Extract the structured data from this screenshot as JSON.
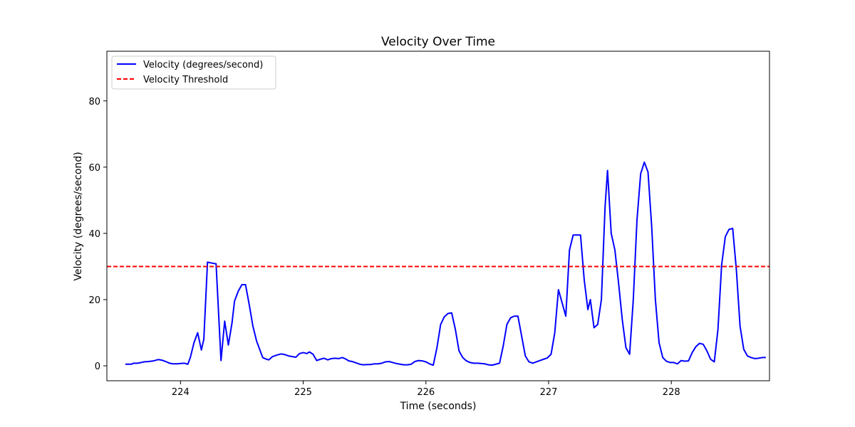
{
  "chart_data": {
    "type": "line",
    "title": "Velocity Over Time",
    "xlabel": "Time (seconds)",
    "ylabel": "Velocity (degrees/second)",
    "xlim": [
      223.4,
      228.8
    ],
    "ylim": [
      -4.5,
      95
    ],
    "x_ticks": [
      224,
      225,
      226,
      227,
      228
    ],
    "y_ticks": [
      0,
      20,
      40,
      60,
      80
    ],
    "grid": false,
    "legend_position": "top-left",
    "series": [
      {
        "name": "Velocity (degrees/second)",
        "color": "#0000ff",
        "style": "solid",
        "points": [
          [
            223.55,
            0.5
          ],
          [
            223.6,
            0.5
          ],
          [
            223.62,
            0.8
          ],
          [
            223.65,
            0.8
          ],
          [
            223.68,
            1.0
          ],
          [
            223.7,
            1.2
          ],
          [
            223.74,
            1.3
          ],
          [
            223.78,
            1.5
          ],
          [
            223.82,
            1.9
          ],
          [
            223.85,
            1.7
          ],
          [
            223.88,
            1.3
          ],
          [
            223.91,
            0.8
          ],
          [
            223.94,
            0.6
          ],
          [
            223.97,
            0.6
          ],
          [
            224.0,
            0.7
          ],
          [
            224.03,
            0.8
          ],
          [
            224.06,
            0.5
          ],
          [
            224.08,
            2.5
          ],
          [
            224.11,
            7.0
          ],
          [
            224.14,
            10.0
          ],
          [
            224.17,
            4.8
          ],
          [
            224.19,
            8.0
          ],
          [
            224.22,
            31.3
          ],
          [
            224.26,
            31.0
          ],
          [
            224.29,
            30.8
          ],
          [
            224.33,
            1.6
          ],
          [
            224.36,
            13.5
          ],
          [
            224.39,
            6.3
          ],
          [
            224.42,
            13.0
          ],
          [
            224.44,
            19.5
          ],
          [
            224.47,
            22.5
          ],
          [
            224.5,
            24.5
          ],
          [
            224.53,
            24.5
          ],
          [
            224.56,
            18.5
          ],
          [
            224.59,
            12.0
          ],
          [
            224.62,
            7.5
          ],
          [
            224.65,
            4.5
          ],
          [
            224.67,
            2.5
          ],
          [
            224.7,
            2.0
          ],
          [
            224.72,
            1.8
          ],
          [
            224.75,
            2.8
          ],
          [
            224.79,
            3.3
          ],
          [
            224.82,
            3.6
          ],
          [
            224.85,
            3.4
          ],
          [
            224.88,
            3.0
          ],
          [
            224.91,
            2.8
          ],
          [
            224.94,
            2.6
          ],
          [
            224.97,
            3.7
          ],
          [
            225.0,
            4.0
          ],
          [
            225.03,
            3.7
          ],
          [
            225.05,
            4.2
          ],
          [
            225.08,
            3.5
          ],
          [
            225.11,
            1.6
          ],
          [
            225.14,
            2.0
          ],
          [
            225.17,
            2.3
          ],
          [
            225.2,
            1.8
          ],
          [
            225.23,
            2.2
          ],
          [
            225.26,
            2.3
          ],
          [
            225.29,
            2.2
          ],
          [
            225.32,
            2.5
          ],
          [
            225.35,
            2.0
          ],
          [
            225.37,
            1.5
          ],
          [
            225.4,
            1.3
          ],
          [
            225.43,
            0.9
          ],
          [
            225.46,
            0.5
          ],
          [
            225.49,
            0.3
          ],
          [
            225.52,
            0.4
          ],
          [
            225.55,
            0.4
          ],
          [
            225.58,
            0.6
          ],
          [
            225.61,
            0.6
          ],
          [
            225.64,
            0.8
          ],
          [
            225.67,
            1.2
          ],
          [
            225.7,
            1.3
          ],
          [
            225.73,
            1.0
          ],
          [
            225.76,
            0.7
          ],
          [
            225.79,
            0.5
          ],
          [
            225.82,
            0.3
          ],
          [
            225.85,
            0.3
          ],
          [
            225.88,
            0.5
          ],
          [
            225.91,
            1.3
          ],
          [
            225.94,
            1.6
          ],
          [
            225.97,
            1.5
          ],
          [
            226.0,
            1.2
          ],
          [
            226.03,
            0.6
          ],
          [
            226.06,
            0.2
          ],
          [
            226.09,
            5.5
          ],
          [
            226.12,
            12.5
          ],
          [
            226.15,
            14.8
          ],
          [
            226.18,
            15.8
          ],
          [
            226.21,
            16.0
          ],
          [
            226.24,
            11.0
          ],
          [
            226.27,
            4.5
          ],
          [
            226.3,
            2.5
          ],
          [
            226.33,
            1.5
          ],
          [
            226.36,
            1.0
          ],
          [
            226.39,
            0.8
          ],
          [
            226.42,
            0.8
          ],
          [
            226.45,
            0.7
          ],
          [
            226.48,
            0.6
          ],
          [
            226.51,
            0.3
          ],
          [
            226.54,
            0.2
          ],
          [
            226.57,
            0.5
          ],
          [
            226.6,
            0.8
          ],
          [
            226.63,
            6.0
          ],
          [
            226.66,
            12.5
          ],
          [
            226.69,
            14.5
          ],
          [
            226.72,
            15.0
          ],
          [
            226.75,
            15.0
          ],
          [
            226.78,
            9.0
          ],
          [
            226.81,
            3.0
          ],
          [
            226.84,
            1.2
          ],
          [
            226.87,
            0.8
          ],
          [
            226.9,
            1.2
          ],
          [
            226.93,
            1.6
          ],
          [
            226.96,
            2.0
          ],
          [
            226.99,
            2.4
          ],
          [
            227.02,
            3.5
          ],
          [
            227.05,
            10.0
          ],
          [
            227.08,
            23.0
          ],
          [
            227.11,
            19.0
          ],
          [
            227.14,
            15.0
          ],
          [
            227.17,
            35.0
          ],
          [
            227.2,
            39.5
          ],
          [
            227.23,
            39.5
          ],
          [
            227.26,
            39.5
          ],
          [
            227.29,
            26.0
          ],
          [
            227.32,
            17.0
          ],
          [
            227.34,
            20.0
          ],
          [
            227.37,
            11.5
          ],
          [
            227.4,
            12.5
          ],
          [
            227.43,
            20.0
          ],
          [
            227.46,
            48.0
          ],
          [
            227.48,
            59.0
          ],
          [
            227.51,
            40.0
          ],
          [
            227.54,
            35.0
          ],
          [
            227.57,
            25.0
          ],
          [
            227.6,
            14.0
          ],
          [
            227.63,
            5.5
          ],
          [
            227.66,
            3.5
          ],
          [
            227.69,
            20.0
          ],
          [
            227.72,
            44.0
          ],
          [
            227.75,
            58.0
          ],
          [
            227.78,
            61.5
          ],
          [
            227.81,
            58.5
          ],
          [
            227.84,
            42.0
          ],
          [
            227.87,
            20.0
          ],
          [
            227.9,
            7.0
          ],
          [
            227.93,
            2.5
          ],
          [
            227.96,
            1.4
          ],
          [
            227.99,
            1.0
          ],
          [
            228.02,
            1.0
          ],
          [
            228.05,
            0.6
          ],
          [
            228.08,
            1.6
          ],
          [
            228.11,
            1.4
          ],
          [
            228.14,
            1.5
          ],
          [
            228.17,
            4.0
          ],
          [
            228.2,
            5.8
          ],
          [
            228.23,
            6.8
          ],
          [
            228.26,
            6.5
          ],
          [
            228.29,
            4.5
          ],
          [
            228.32,
            2.0
          ],
          [
            228.35,
            1.2
          ],
          [
            228.38,
            11.0
          ],
          [
            228.41,
            30.5
          ],
          [
            228.44,
            39.0
          ],
          [
            228.47,
            41.2
          ],
          [
            228.5,
            41.5
          ],
          [
            228.53,
            29.0
          ],
          [
            228.56,
            12.0
          ],
          [
            228.59,
            5.0
          ],
          [
            228.62,
            3.0
          ],
          [
            228.65,
            2.5
          ],
          [
            228.68,
            2.2
          ],
          [
            228.71,
            2.3
          ],
          [
            228.74,
            2.5
          ],
          [
            228.77,
            2.5
          ]
        ]
      },
      {
        "name": "Velocity Threshold",
        "color": "#ff0000",
        "style": "dashed",
        "value": 30
      }
    ]
  }
}
